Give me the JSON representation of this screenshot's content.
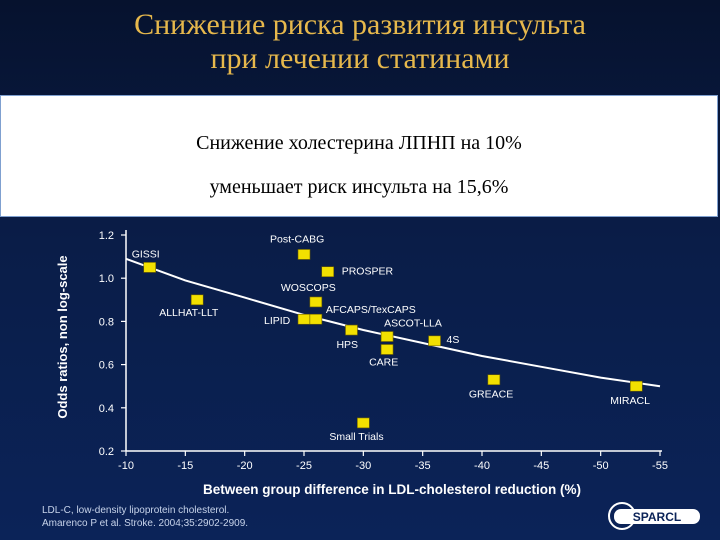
{
  "slide": {
    "title_line1": "Снижение риска развития инсульта",
    "title_line2": "при лечении статинами",
    "box_line1": "Снижение холестерина ЛПНП на 10%",
    "box_line2": "уменьшает  риск инсульта на 15,6%"
  },
  "footnote": {
    "line1": "LDL-C, low-density lipoprotein cholesterol.",
    "line2": "Amarenco P et al. Stroke. 2004;35:2902-2909."
  },
  "logo": {
    "text": "SPARCL"
  },
  "colors": {
    "marker": "#f2e000",
    "text": "#ffffff",
    "curve": "#ffffff",
    "title": "#e6b84c"
  },
  "chart_data": {
    "type": "scatter",
    "xlabel": "Between group difference in LDL-cholesterol reduction (%)",
    "ylabel": "Odds ratios, non log-scale",
    "x_ticks": [
      -10,
      -15,
      -20,
      -25,
      -30,
      -35,
      -40,
      -45,
      -50,
      -55
    ],
    "y_ticks": [
      0.2,
      0.4,
      0.6,
      0.8,
      1.0,
      1.2
    ],
    "xlim": [
      -10,
      -55
    ],
    "ylim": [
      0.2,
      1.2
    ],
    "points": [
      {
        "label": "GISSI",
        "x": -12,
        "y": 1.05
      },
      {
        "label": "Post-CABG",
        "x": -25,
        "y": 1.11
      },
      {
        "label": "PROSPER",
        "x": -27,
        "y": 1.03
      },
      {
        "label": "WOSCOPS",
        "x": -26,
        "y": 0.89
      },
      {
        "label": "ALLHAT-LLT",
        "x": -16,
        "y": 0.9
      },
      {
        "label": "LIPID",
        "x": -25,
        "y": 0.81
      },
      {
        "label": "AFCAPS/TexCAPS",
        "x": -26,
        "y": 0.81
      },
      {
        "label": "HPS",
        "x": -29,
        "y": 0.76
      },
      {
        "label": "ASCOT-LLA",
        "x": -32,
        "y": 0.73
      },
      {
        "label": "CARE",
        "x": -32,
        "y": 0.67
      },
      {
        "label": "4S",
        "x": -36,
        "y": 0.71
      },
      {
        "label": "GREACE",
        "x": -41,
        "y": 0.53
      },
      {
        "label": "MIRACL",
        "x": -53,
        "y": 0.5
      },
      {
        "label": "Small Trials",
        "x": -30,
        "y": 0.33
      }
    ],
    "trend": [
      {
        "x": -10,
        "y": 1.09
      },
      {
        "x": -15,
        "y": 0.99
      },
      {
        "x": -20,
        "y": 0.91
      },
      {
        "x": -25,
        "y": 0.83
      },
      {
        "x": -30,
        "y": 0.76
      },
      {
        "x": -35,
        "y": 0.7
      },
      {
        "x": -40,
        "y": 0.64
      },
      {
        "x": -45,
        "y": 0.59
      },
      {
        "x": -50,
        "y": 0.54
      },
      {
        "x": -55,
        "y": 0.5
      }
    ]
  }
}
